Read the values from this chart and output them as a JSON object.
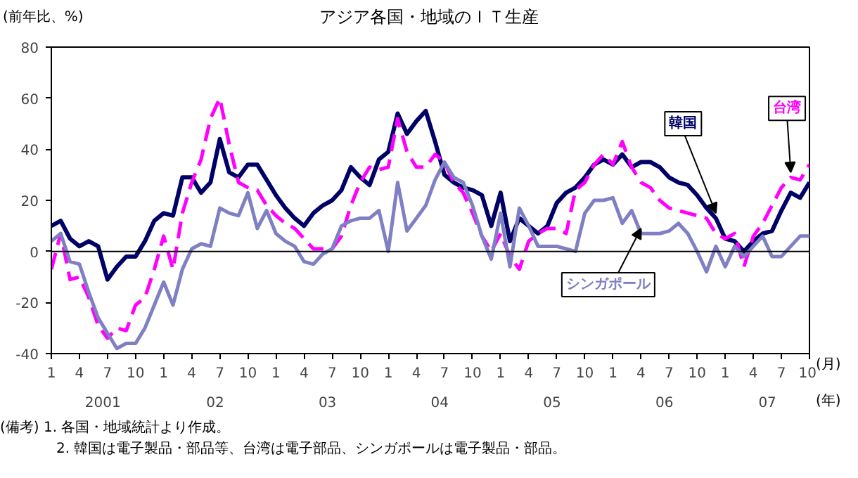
{
  "chart_data": {
    "type": "line",
    "title": "アジア各国・地域のＩＴ生産",
    "ylabel": "(前年比、%)",
    "xlabel": "(月)",
    "x": [
      "2001-01",
      "2001-02",
      "2001-03",
      "2001-04",
      "2001-05",
      "2001-06",
      "2001-07",
      "2001-08",
      "2001-09",
      "2001-10",
      "2001-11",
      "2001-12",
      "2002-01",
      "2002-02",
      "2002-03",
      "2002-04",
      "2002-05",
      "2002-06",
      "2002-07",
      "2002-08",
      "2002-09",
      "2002-10",
      "2002-11",
      "2002-12",
      "2003-01",
      "2003-02",
      "2003-03",
      "2003-04",
      "2003-05",
      "2003-06",
      "2003-07",
      "2003-08",
      "2003-09",
      "2003-10",
      "2003-11",
      "2003-12",
      "2004-01",
      "2004-02",
      "2004-03",
      "2004-04",
      "2004-05",
      "2004-06",
      "2004-07",
      "2004-08",
      "2004-09",
      "2004-10",
      "2004-11",
      "2004-12",
      "2005-01",
      "2005-02",
      "2005-03",
      "2005-04",
      "2005-05",
      "2005-06",
      "2005-07",
      "2005-08",
      "2005-09",
      "2005-10",
      "2005-11",
      "2005-12",
      "2006-01",
      "2006-02",
      "2006-03",
      "2006-04",
      "2006-05",
      "2006-06",
      "2006-07",
      "2006-08",
      "2006-09",
      "2006-10",
      "2006-11",
      "2006-12",
      "2007-01",
      "2007-02",
      "2007-03",
      "2007-04",
      "2007-05",
      "2007-06",
      "2007-07",
      "2007-08",
      "2007-09",
      "2007-10"
    ],
    "series": [
      {
        "name": "韓国",
        "color": "#000066",
        "line_style": "solid",
        "values": [
          10,
          12,
          5,
          2,
          4,
          2,
          -11,
          -6,
          -2,
          -2,
          4,
          12,
          15,
          14,
          29,
          29,
          23,
          27,
          44,
          31,
          29,
          34,
          34,
          28,
          22,
          17,
          13,
          10,
          15,
          18,
          20,
          24,
          33,
          29,
          26,
          36,
          39,
          54,
          46,
          51,
          55,
          43,
          30,
          27,
          25,
          24,
          22,
          10,
          23,
          4,
          13,
          10,
          7,
          10,
          19,
          23,
          25,
          29,
          34,
          36,
          34,
          38,
          33,
          35,
          35,
          33,
          29,
          27,
          26,
          22,
          17,
          13,
          5,
          4,
          0,
          4,
          7,
          8,
          16,
          23,
          21,
          27
        ]
      },
      {
        "name": "台湾",
        "color": "#ff00ff",
        "line_style": "dashed",
        "values": [
          -7,
          7,
          -11,
          -10,
          -18,
          -29,
          -34,
          -30,
          -31,
          -21,
          -18,
          -7,
          6,
          -7,
          15,
          27,
          36,
          52,
          60,
          42,
          27,
          25,
          24,
          18,
          14,
          11,
          9,
          5,
          1,
          1,
          1,
          6,
          18,
          27,
          33,
          32,
          33,
          52,
          39,
          33,
          33,
          38,
          35,
          27,
          23,
          15,
          6,
          0,
          7,
          -2,
          -7,
          4,
          7,
          9,
          9,
          7,
          24,
          27,
          34,
          38,
          34,
          43,
          33,
          27,
          25,
          20,
          17,
          16,
          15,
          14,
          13,
          7,
          5,
          7,
          -6,
          6,
          11,
          18,
          25,
          29,
          28,
          34
        ]
      },
      {
        "name": "シンガポール",
        "color": "#7f7fc4",
        "line_style": "solid",
        "values": [
          4,
          7,
          -4,
          -5,
          -16,
          -26,
          -32,
          -38,
          -36,
          -36,
          -30,
          -21,
          -12,
          -21,
          -7,
          1,
          3,
          2,
          17,
          15,
          14,
          23,
          9,
          16,
          7,
          4,
          2,
          -4,
          -5,
          -1,
          1,
          10,
          12,
          13,
          13,
          16,
          0,
          27,
          8,
          13,
          18,
          28,
          35,
          29,
          27,
          18,
          6,
          -3,
          15,
          -6,
          17,
          10,
          2,
          2,
          2,
          1,
          0,
          15,
          20,
          20,
          21,
          11,
          16,
          7,
          7,
          7,
          8,
          11,
          7,
          0,
          -8,
          2,
          -6,
          2,
          -2,
          2,
          6,
          -2,
          -2,
          2,
          6,
          6
        ]
      }
    ],
    "ylim": [
      -40,
      80
    ],
    "yticks": [
      -40,
      -20,
      0,
      20,
      40,
      60,
      80
    ],
    "xlim": [
      "2001-01",
      "2007-10"
    ],
    "xticks": [
      {
        "value": "2001-01",
        "label": "1"
      },
      {
        "value": "2001-04",
        "label": "4"
      },
      {
        "value": "2001-07",
        "label": "7"
      },
      {
        "value": "2001-10",
        "label": "10"
      },
      {
        "value": "2002-01",
        "label": "1"
      },
      {
        "value": "2002-04",
        "label": "4"
      },
      {
        "value": "2002-07",
        "label": "7"
      },
      {
        "value": "2002-10",
        "label": "10"
      },
      {
        "value": "2003-01",
        "label": "1"
      },
      {
        "value": "2003-04",
        "label": "4"
      },
      {
        "value": "2003-07",
        "label": "7"
      },
      {
        "value": "2003-10",
        "label": "10"
      },
      {
        "value": "2004-01",
        "label": "1"
      },
      {
        "value": "2004-04",
        "label": "4"
      },
      {
        "value": "2004-07",
        "label": "7"
      },
      {
        "value": "2004-10",
        "label": "10"
      },
      {
        "value": "2005-01",
        "label": "1"
      },
      {
        "value": "2005-04",
        "label": "4"
      },
      {
        "value": "2005-07",
        "label": "7"
      },
      {
        "value": "2005-10",
        "label": "10"
      },
      {
        "value": "2006-01",
        "label": "1"
      },
      {
        "value": "2006-04",
        "label": "4"
      },
      {
        "value": "2006-07",
        "label": "7"
      },
      {
        "value": "2006-10",
        "label": "10"
      },
      {
        "value": "2007-01",
        "label": "1"
      },
      {
        "value": "2007-04",
        "label": "4"
      },
      {
        "value": "2007-07",
        "label": "7"
      },
      {
        "value": "2007-10",
        "label": "10"
      }
    ],
    "ref_lines": [
      {
        "axis": "y",
        "value": 0,
        "color": "#000000"
      }
    ],
    "grid": false,
    "legend": false,
    "annotations": [
      "2001",
      "02",
      "03",
      "04",
      "05",
      "06",
      "07",
      "(年)",
      "(備考) 1. 各国・地域統計より作成。",
      "2. 韓国は電子製品・部品等、台湾は電子部品、シンガポールは電子製品・部品。"
    ]
  }
}
